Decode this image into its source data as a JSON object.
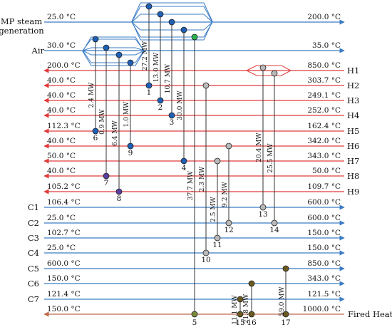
{
  "colors": {
    "hot": "#e03c3c",
    "cold": "#3b7cc4",
    "heater": "#c06a4a",
    "node_blue": "#1f5fb4",
    "node_gray": "#b8b8b8",
    "node_green": "#28b14c",
    "node_purple": "#5a3fa0",
    "node_brown": "#6b5a20",
    "node_olive": "#7a8a3a"
  },
  "streams": [
    {
      "id": "mp",
      "kind": "utility-cold",
      "name": "MP steam\ngeneration",
      "tin": "25.0 °C",
      "tout": "200.0 °C"
    },
    {
      "id": "air",
      "kind": "utility-cold",
      "name": "Air",
      "tin": "30.0 °C",
      "tout": "35.0 °C"
    },
    {
      "id": "H1",
      "kind": "hot",
      "name": "H1",
      "tin": "850.0 °C",
      "tout": "200.0 °C"
    },
    {
      "id": "H2",
      "kind": "hot",
      "name": "H2",
      "tin": "303.7 °C",
      "tout": "40.0 °C"
    },
    {
      "id": "H3",
      "kind": "hot",
      "name": "H3",
      "tin": "249.1 °C",
      "tout": "40.0 °C"
    },
    {
      "id": "H4",
      "kind": "hot",
      "name": "H4",
      "tin": "252.0 °C",
      "tout": "40.0 °C"
    },
    {
      "id": "H5",
      "kind": "hot",
      "name": "H5",
      "tin": "162.4 °C",
      "tout": "112.3 °C"
    },
    {
      "id": "H6",
      "kind": "hot",
      "name": "H6",
      "tin": "342.0 °C",
      "tout": "40.0 °C"
    },
    {
      "id": "H7",
      "kind": "hot",
      "name": "H7",
      "tin": "343.0 °C",
      "tout": "50.0 °C"
    },
    {
      "id": "H8",
      "kind": "hot",
      "name": "H8",
      "tin": "50.0 °C",
      "tout": "40.0 °C"
    },
    {
      "id": "H9",
      "kind": "hot",
      "name": "H9",
      "tin": "109.7 °C",
      "tout": "105.2 °C"
    },
    {
      "id": "C1",
      "kind": "cold",
      "name": "C1",
      "tin": "106.4 °C",
      "tout": "600.0 °C"
    },
    {
      "id": "C2",
      "kind": "cold",
      "name": "C2",
      "tin": "25.0 °C",
      "tout": "600.0 °C"
    },
    {
      "id": "C3",
      "kind": "cold",
      "name": "C3",
      "tin": "102.7 °C",
      "tout": "150.0 °C"
    },
    {
      "id": "C4",
      "kind": "cold",
      "name": "C4",
      "tin": "25.0 °C",
      "tout": "150.0 °C"
    },
    {
      "id": "C5",
      "kind": "cold",
      "name": "C5",
      "tin": "600.0 °C",
      "tout": "850.0 °C"
    },
    {
      "id": "C6",
      "kind": "cold",
      "name": "C6",
      "tin": "150.0 °C",
      "tout": "343.0 °C"
    },
    {
      "id": "C7",
      "kind": "cold",
      "name": "C7",
      "tin": "121.4 °C",
      "tout": "121.5 °C"
    },
    {
      "id": "fh",
      "kind": "utility-hot",
      "name": "Fired Heat",
      "tin": "1000.0 °C",
      "tout": "150.0 °C"
    }
  ],
  "exchangers": [
    {
      "num": "1",
      "duty": "27.2 MW",
      "top": "mp",
      "bottom": "H2",
      "top_color": "node_blue",
      "bottom_color": "node_blue"
    },
    {
      "num": "2",
      "duty": "13.0 MW",
      "top": "mp",
      "bottom": "H3",
      "top_color": "node_blue",
      "bottom_color": "node_blue"
    },
    {
      "num": "3",
      "duty": "10.7 MW",
      "top": "mp",
      "bottom": "H4",
      "top_color": "node_blue",
      "bottom_color": "node_blue"
    },
    {
      "num": "4",
      "duty": "30.0 MW",
      "top": "mp",
      "bottom": "H7",
      "top_color": "node_blue",
      "bottom_color": "node_blue"
    },
    {
      "num": "5",
      "duty": "37.7 MW",
      "top": "mp",
      "bottom": "fh",
      "top_color": "node_green",
      "bottom_color": "node_olive"
    },
    {
      "num": "6",
      "duty": "2.4 MW",
      "top": "air",
      "bottom": "H5",
      "top_color": "node_blue",
      "bottom_color": "node_blue"
    },
    {
      "num": "7",
      "duty": "0.9 MW",
      "top": "air",
      "bottom": "H8",
      "top_color": "node_blue",
      "bottom_color": "node_purple"
    },
    {
      "num": "8",
      "duty": "6.4 MW",
      "top": "air",
      "bottom": "H9",
      "top_color": "node_blue",
      "bottom_color": "node_purple"
    },
    {
      "num": "9",
      "duty": "1.0 MW",
      "top": "air",
      "bottom": "H6",
      "top_color": "node_blue",
      "bottom_color": "node_blue"
    },
    {
      "num": "10",
      "duty": "2.3 MW",
      "top": "H2",
      "bottom": "C4",
      "top_color": "node_gray",
      "bottom_color": "node_gray"
    },
    {
      "num": "11",
      "duty": "2.5 MW",
      "top": "H7",
      "bottom": "C3",
      "top_color": "node_gray",
      "bottom_color": "node_gray"
    },
    {
      "num": "12",
      "duty": "9.2 MW",
      "top": "H6",
      "bottom": "C2",
      "top_color": "node_gray",
      "bottom_color": "node_gray"
    },
    {
      "num": "13",
      "duty": "20.4 MW",
      "top": "H1",
      "bottom": "C1",
      "top_color": "node_gray",
      "bottom_color": "node_gray"
    },
    {
      "num": "14",
      "duty": "25.5 MW",
      "top": "H1",
      "bottom": "C2",
      "top_color": "node_gray",
      "bottom_color": "node_gray"
    },
    {
      "num": "15",
      "duty": "11.1 MW",
      "top": "C7",
      "bottom": "fh",
      "top_color": "node_brown",
      "bottom_color": "node_brown"
    },
    {
      "num": "16",
      "duty": "21.8 MW",
      "top": "C6",
      "bottom": "fh",
      "top_color": "node_brown",
      "bottom_color": "node_brown"
    },
    {
      "num": "17",
      "duty": "59.0 MW",
      "top": "C5",
      "bottom": "fh",
      "top_color": "node_brown",
      "bottom_color": "node_brown"
    }
  ],
  "splits": [
    {
      "stream": "mp",
      "branches": 4,
      "color": "cold"
    },
    {
      "stream": "air",
      "branches": 4,
      "color": "cold"
    },
    {
      "stream": "H1",
      "branches": 2,
      "color": "hot"
    }
  ]
}
